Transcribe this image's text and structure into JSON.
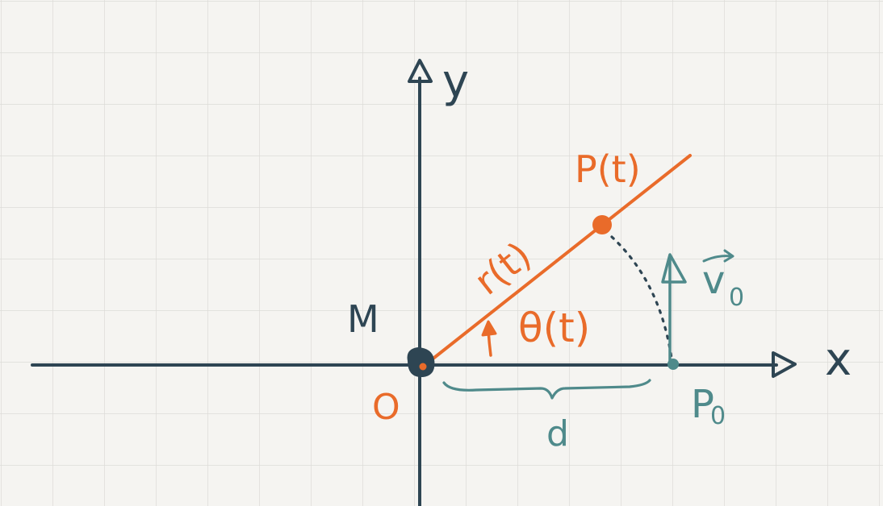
{
  "diagram": {
    "colors": {
      "background": "#f5f4f1",
      "grid": "#dcdbd7",
      "axis": "#2e4553",
      "orange": "#e96b2a",
      "teal": "#4f8a8b"
    },
    "labels": {
      "x_axis": "x",
      "y_axis": "y",
      "mass": "M",
      "origin": "O",
      "point": "P(t)",
      "radius": "r(t)",
      "angle": "θ(t)",
      "velocity": "v",
      "velocity_sub": "0",
      "start_point": "P",
      "start_point_sub": "0",
      "distance": "d"
    }
  }
}
